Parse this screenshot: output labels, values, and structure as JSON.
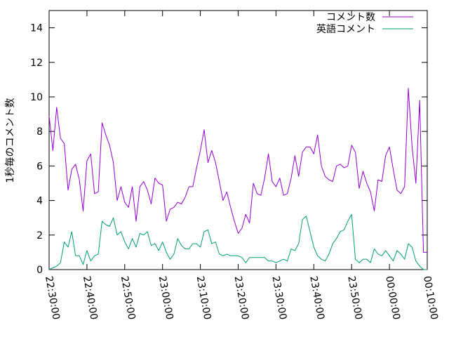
{
  "chart_data": {
    "type": "line",
    "title": "",
    "xlabel": "",
    "ylabel": "1秒毎のコメント数",
    "x_ticks": [
      "22:30:00",
      "22:40:00",
      "22:50:00",
      "23:00:00",
      "23:10:00",
      "23:20:00",
      "23:30:00",
      "23:40:00",
      "23:50:00",
      "00:00:00",
      "00:10:00"
    ],
    "x_tick_positions_min": [
      0,
      10,
      20,
      30,
      40,
      50,
      60,
      70,
      80,
      90,
      100
    ],
    "xlim_minutes": [
      0,
      100
    ],
    "x_unit": "minutes after 22:30:00",
    "ylim": [
      0,
      15
    ],
    "y_ticks": [
      0,
      2,
      4,
      6,
      8,
      10,
      12,
      14
    ],
    "y_tick_labels": [
      "0",
      "2",
      "4",
      "6",
      "8",
      "10",
      "12",
      "14"
    ],
    "grid": false,
    "legend_position": "top-right",
    "series": [
      {
        "name": "コメント数",
        "color": "#9400d3",
        "x": [
          0,
          1,
          2,
          3,
          4,
          5,
          6,
          7,
          8,
          9,
          10,
          11,
          12,
          13,
          14,
          15,
          16,
          17,
          18,
          19,
          20,
          21,
          22,
          23,
          24,
          25,
          26,
          27,
          28,
          29,
          30,
          31,
          32,
          33,
          34,
          35,
          36,
          37,
          38,
          39,
          40,
          41,
          42,
          43,
          44,
          45,
          46,
          47,
          48,
          49,
          50,
          51,
          52,
          53,
          54,
          55,
          56,
          57,
          58,
          59,
          60,
          61,
          62,
          63,
          64,
          65,
          66,
          67,
          68,
          69,
          70,
          71,
          72,
          73,
          74,
          75,
          76,
          77,
          78,
          79,
          80,
          81,
          82,
          83,
          84,
          85,
          86,
          87,
          88,
          89,
          90,
          91,
          92,
          93,
          94,
          95,
          96,
          97,
          98,
          99,
          100
        ],
        "values": [
          8.9,
          6.9,
          9.4,
          7.6,
          7.3,
          4.6,
          5.8,
          6.1,
          5.2,
          3.4,
          6.3,
          6.7,
          4.4,
          4.5,
          8.5,
          7.8,
          7.2,
          6.2,
          4.0,
          4.8,
          3.9,
          3.6,
          4.8,
          2.8,
          4.8,
          5.1,
          4.6,
          3.8,
          5.3,
          5.0,
          4.9,
          2.8,
          3.5,
          3.6,
          3.9,
          3.8,
          4.2,
          4.8,
          4.8,
          5.9,
          6.9,
          8.1,
          6.2,
          6.9,
          6.2,
          5.1,
          4.0,
          4.5,
          3.6,
          2.8,
          2.1,
          2.4,
          3.2,
          2.7,
          5.0,
          4.4,
          4.3,
          5.3,
          6.7,
          5.1,
          4.8,
          5.3,
          4.3,
          4.4,
          5.3,
          6.6,
          5.4,
          6.8,
          7.1,
          7.1,
          6.7,
          7.8,
          6.0,
          5.4,
          5.2,
          5.1,
          6.0,
          6.1,
          5.9,
          6.0,
          7.2,
          6.8,
          4.7,
          5.7,
          5.0,
          4.5,
          3.4,
          5.2,
          5.1,
          6.6,
          7.1,
          5.8,
          4.6,
          4.4,
          4.8,
          10.5,
          7.1,
          5.0,
          9.8,
          1.0,
          1.0
        ]
      },
      {
        "name": "英語コメント",
        "color": "#009e73",
        "x": [
          0,
          1,
          2,
          3,
          4,
          5,
          6,
          7,
          8,
          9,
          10,
          11,
          12,
          13,
          14,
          15,
          16,
          17,
          18,
          19,
          20,
          21,
          22,
          23,
          24,
          25,
          26,
          27,
          28,
          29,
          30,
          31,
          32,
          33,
          34,
          35,
          36,
          37,
          38,
          39,
          40,
          41,
          42,
          43,
          44,
          45,
          46,
          47,
          48,
          49,
          50,
          51,
          52,
          53,
          54,
          55,
          56,
          57,
          58,
          59,
          60,
          61,
          62,
          63,
          64,
          65,
          66,
          67,
          68,
          69,
          70,
          71,
          72,
          73,
          74,
          75,
          76,
          77,
          78,
          79,
          80,
          81,
          82,
          83,
          84,
          85,
          86,
          87,
          88,
          89,
          90,
          91,
          92,
          93,
          94,
          95,
          96,
          97,
          98,
          99,
          100
        ],
        "values": [
          0.0,
          0.1,
          0.2,
          0.4,
          1.6,
          1.3,
          2.2,
          0.8,
          0.8,
          0.3,
          1.1,
          0.5,
          0.8,
          0.9,
          2.8,
          2.6,
          2.5,
          3.0,
          2.0,
          2.2,
          1.6,
          1.2,
          1.8,
          1.3,
          2.1,
          2.0,
          2.2,
          1.4,
          1.5,
          1.1,
          1.6,
          1.0,
          0.6,
          0.9,
          1.8,
          1.4,
          1.2,
          1.2,
          1.5,
          1.5,
          1.3,
          2.2,
          2.3,
          1.5,
          1.6,
          0.9,
          0.8,
          0.9,
          0.8,
          0.8,
          0.8,
          0.7,
          0.4,
          0.7,
          0.7,
          0.7,
          0.7,
          0.7,
          0.5,
          0.5,
          0.4,
          0.5,
          0.6,
          0.5,
          1.2,
          1.1,
          1.5,
          2.9,
          3.1,
          2.2,
          1.3,
          0.8,
          0.6,
          0.5,
          0.9,
          1.5,
          1.8,
          2.2,
          2.3,
          2.8,
          3.2,
          0.6,
          0.4,
          0.6,
          0.6,
          0.4,
          1.2,
          0.9,
          0.8,
          1.1,
          0.8,
          0.5,
          1.1,
          0.9,
          0.6,
          1.5,
          1.3,
          0.5,
          0.2,
          0.0,
          0.0
        ]
      }
    ]
  }
}
